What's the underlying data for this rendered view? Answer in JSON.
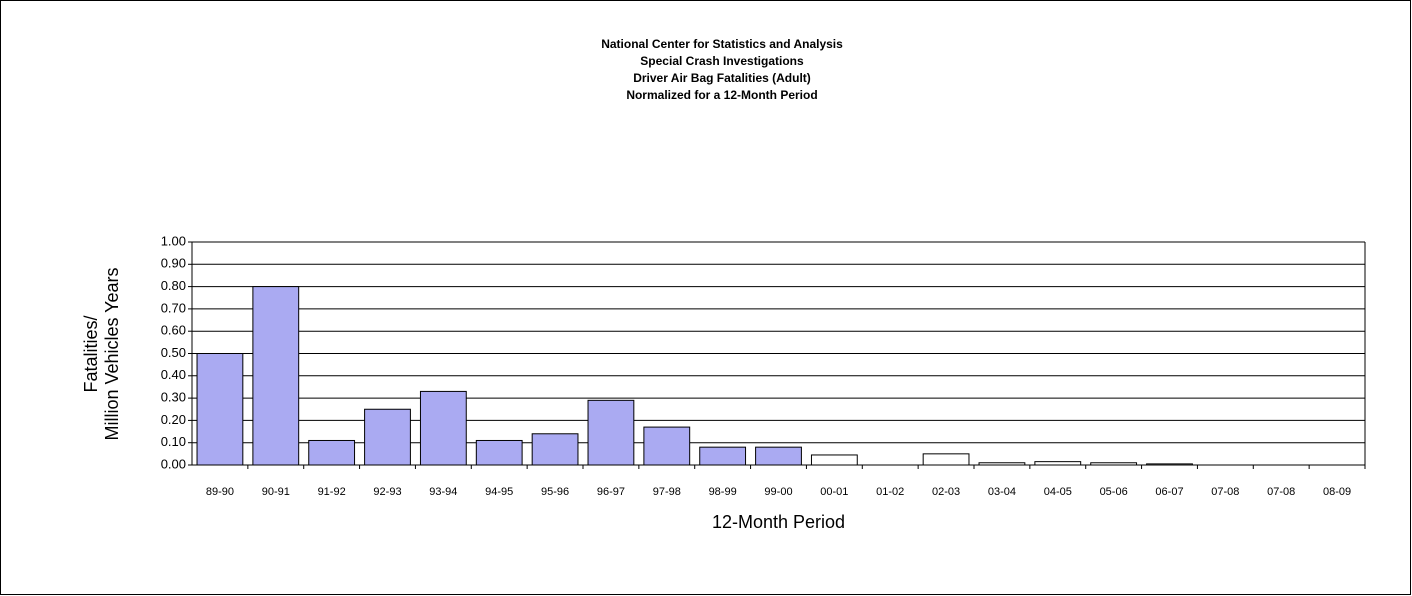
{
  "chart_data": {
    "type": "bar",
    "title": [
      "National Center for Statistics and Analysis",
      "Special Crash Investigations",
      "Driver Air Bag Fatalities (Adult)",
      "Normalized for a 12-Month Period"
    ],
    "y_label": [
      "Fatalities/",
      "Million Vehicles Years"
    ],
    "x_label": "12-Month Period",
    "categories": [
      "89-90",
      "90-91",
      "91-92",
      "92-93",
      "93-94",
      "94-95",
      "95-96",
      "96-97",
      "97-98",
      "98-99",
      "99-00",
      "00-01",
      "01-02",
      "02-03",
      "03-04",
      "04-05",
      "05-06",
      "06-07",
      "07-08",
      "07-08",
      "08-09"
    ],
    "values": [
      0.5,
      0.8,
      0.11,
      0.25,
      0.33,
      0.11,
      0.14,
      0.29,
      0.17,
      0.08,
      0.08,
      0.045,
      0,
      0.05,
      0.01,
      0.015,
      0.01,
      0.005,
      0,
      0,
      0
    ],
    "colors": [
      "#aaaaf2",
      "#aaaaf2",
      "#aaaaf2",
      "#aaaaf2",
      "#aaaaf2",
      "#aaaaf2",
      "#aaaaf2",
      "#aaaaf2",
      "#aaaaf2",
      "#aaaaf2",
      "#aaaaf2",
      "#ffffff",
      "#ffffff",
      "#ffffff",
      "#ffffff",
      "#ffffff",
      "#ffffff",
      "#ffffff",
      "#ffffff",
      "#ffffff",
      "#ffffff"
    ],
    "ylim": [
      0,
      1
    ],
    "yticks": [
      {
        "value": 0,
        "label": "0.00"
      },
      {
        "value": 0.1,
        "label": "0.10"
      },
      {
        "value": 0.2,
        "label": "0.20"
      },
      {
        "value": 0.3,
        "label": "0.30"
      },
      {
        "value": 0.4,
        "label": "0.40"
      },
      {
        "value": 0.5,
        "label": "0.50"
      },
      {
        "value": 0.6,
        "label": "0.60"
      },
      {
        "value": 0.7,
        "label": "0.70"
      },
      {
        "value": 0.8,
        "label": "0.80"
      },
      {
        "value": 0.9,
        "label": "0.90"
      },
      {
        "value": 1,
        "label": "1.00"
      }
    ],
    "grid": true
  }
}
